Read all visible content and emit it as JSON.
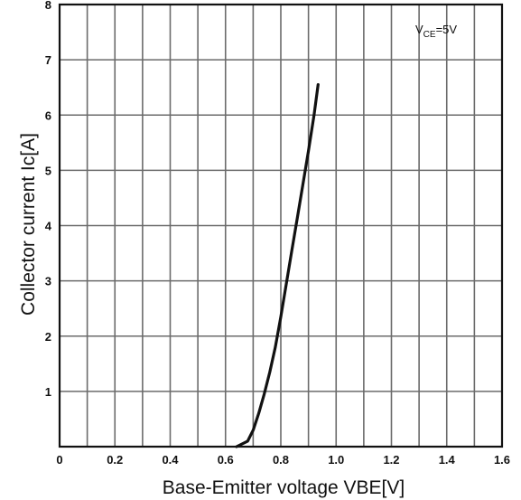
{
  "chart_data": {
    "type": "line",
    "xlabel": "Base-Emitter voltage VBE[V]",
    "ylabel": "Collector current   Ic[A]",
    "xlim": [
      0,
      1.6
    ],
    "ylim": [
      0,
      8
    ],
    "xticks": [
      "0",
      "0.2",
      "0.4",
      "0.6",
      "0.8",
      "1.0",
      "1.2",
      "1.4",
      "1.6"
    ],
    "yticks": [
      "0",
      "1",
      "2",
      "3",
      "4",
      "5",
      "6",
      "7",
      "8"
    ],
    "grid": true,
    "annotation": {
      "main": "V",
      "sub": "CE",
      "rest": "=5V"
    },
    "series": [
      {
        "x": [
          0.64,
          0.68,
          0.7,
          0.72,
          0.74,
          0.76,
          0.78,
          0.8,
          0.82,
          0.84,
          0.86,
          0.88,
          0.9,
          0.92,
          0.935
        ],
        "y": [
          0.0,
          0.1,
          0.3,
          0.6,
          0.95,
          1.35,
          1.8,
          2.35,
          2.95,
          3.55,
          4.15,
          4.75,
          5.35,
          6.0,
          6.55
        ]
      }
    ]
  }
}
